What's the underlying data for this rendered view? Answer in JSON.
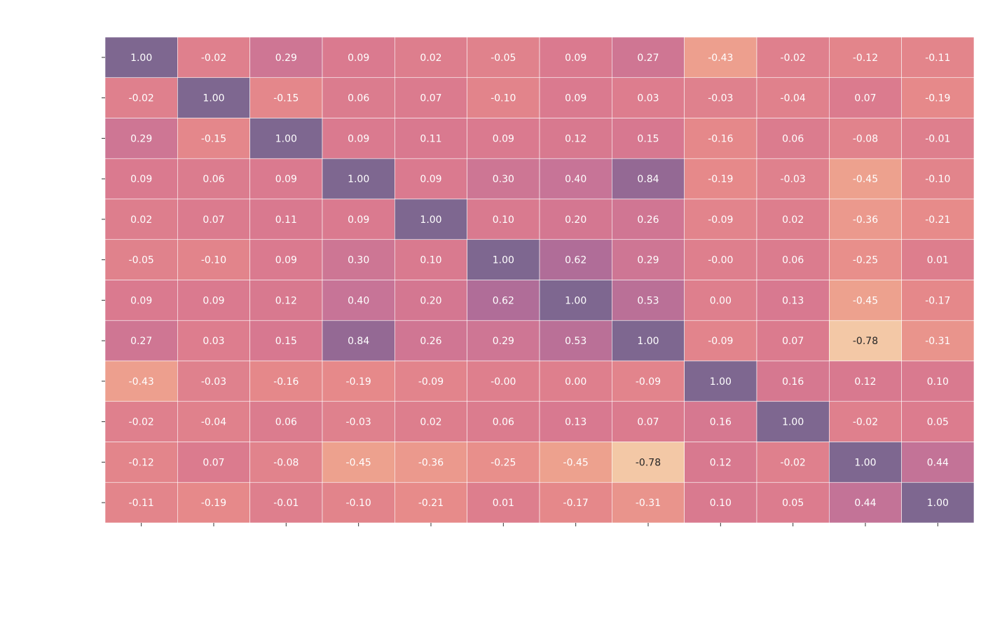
{
  "chart_data": {
    "type": "heatmap",
    "title": "",
    "xlabel": "",
    "ylabel": "",
    "row_labels": [],
    "col_labels": [],
    "value_format": "0.00",
    "colormap": [
      "#f3c8a6",
      "#eea48f",
      "#e6898a",
      "#d9798f",
      "#c77497",
      "#a76a98",
      "#7e6790"
    ],
    "vmin": -0.78,
    "vmax": 1.0,
    "matrix": [
      [
        1.0,
        -0.02,
        0.29,
        0.09,
        0.02,
        -0.05,
        0.09,
        0.27,
        -0.43,
        -0.02,
        -0.12,
        -0.11
      ],
      [
        -0.02,
        1.0,
        -0.15,
        0.06,
        0.07,
        -0.1,
        0.09,
        0.03,
        -0.03,
        -0.04,
        0.07,
        -0.19
      ],
      [
        0.29,
        -0.15,
        1.0,
        0.09,
        0.11,
        0.09,
        0.12,
        0.15,
        -0.16,
        0.06,
        -0.08,
        -0.01
      ],
      [
        0.09,
        0.06,
        0.09,
        1.0,
        0.09,
        0.3,
        0.4,
        0.84,
        -0.19,
        -0.03,
        -0.45,
        -0.1
      ],
      [
        0.02,
        0.07,
        0.11,
        0.09,
        1.0,
        0.1,
        0.2,
        0.26,
        -0.09,
        0.02,
        -0.36,
        -0.21
      ],
      [
        -0.05,
        -0.1,
        0.09,
        0.3,
        0.1,
        1.0,
        0.62,
        0.29,
        -0.0,
        0.06,
        -0.25,
        0.01
      ],
      [
        0.09,
        0.09,
        0.12,
        0.4,
        0.2,
        0.62,
        1.0,
        0.53,
        0.0,
        0.13,
        -0.45,
        -0.17
      ],
      [
        0.27,
        0.03,
        0.15,
        0.84,
        0.26,
        0.29,
        0.53,
        1.0,
        -0.09,
        0.07,
        -0.78,
        -0.31
      ],
      [
        -0.43,
        -0.03,
        -0.16,
        -0.19,
        -0.09,
        -0.0,
        0.0,
        -0.09,
        1.0,
        0.16,
        0.12,
        0.1
      ],
      [
        -0.02,
        -0.04,
        0.06,
        -0.03,
        0.02,
        0.06,
        0.13,
        0.07,
        0.16,
        1.0,
        -0.02,
        0.05
      ],
      [
        -0.12,
        0.07,
        -0.08,
        -0.45,
        -0.36,
        -0.25,
        -0.45,
        -0.78,
        0.12,
        -0.02,
        1.0,
        0.44
      ],
      [
        -0.11,
        -0.19,
        -0.01,
        -0.1,
        -0.21,
        0.01,
        -0.17,
        -0.31,
        0.1,
        0.05,
        0.44,
        1.0
      ]
    ],
    "text_color_light": "#ffffff",
    "text_color_dark": "#262626",
    "grid_line_color": "#ffffff"
  }
}
